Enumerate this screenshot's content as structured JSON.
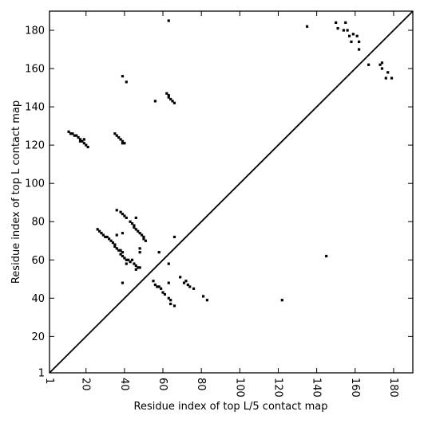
{
  "chart_data": {
    "type": "scatter",
    "xlabel": "Residue index of top L/5 contact map",
    "ylabel": "Residue index of top L contact map",
    "xlim": [
      1,
      190
    ],
    "ylim": [
      1,
      190
    ],
    "x_ticks": [
      1,
      20,
      40,
      60,
      80,
      100,
      120,
      140,
      160,
      180
    ],
    "y_ticks": [
      1,
      20,
      40,
      60,
      80,
      100,
      120,
      140,
      160,
      180
    ],
    "diagonal": true,
    "grid": false,
    "marker": "square",
    "series": [
      {
        "color": "#000000",
        "points": [
          [
            11,
            127
          ],
          [
            12,
            126
          ],
          [
            13,
            126
          ],
          [
            14,
            125
          ],
          [
            15,
            125
          ],
          [
            16,
            124
          ],
          [
            17,
            123
          ],
          [
            18,
            122
          ],
          [
            19,
            121
          ],
          [
            20,
            120
          ],
          [
            21,
            119
          ],
          [
            17,
            122
          ],
          [
            19,
            123
          ],
          [
            35,
            126
          ],
          [
            36,
            125
          ],
          [
            37,
            124
          ],
          [
            38,
            123
          ],
          [
            39,
            122
          ],
          [
            40,
            121
          ],
          [
            39,
            121
          ],
          [
            39,
            156
          ],
          [
            41,
            153
          ],
          [
            56,
            143
          ],
          [
            62,
            147
          ],
          [
            63,
            146
          ],
          [
            63,
            145
          ],
          [
            64,
            144
          ],
          [
            65,
            143
          ],
          [
            66,
            142
          ],
          [
            63,
            185
          ],
          [
            26,
            76
          ],
          [
            27,
            75
          ],
          [
            28,
            74
          ],
          [
            29,
            73
          ],
          [
            30,
            72
          ],
          [
            31,
            72
          ],
          [
            32,
            71
          ],
          [
            33,
            70
          ],
          [
            34,
            69
          ],
          [
            35,
            68
          ],
          [
            35,
            67
          ],
          [
            36,
            66
          ],
          [
            37,
            65
          ],
          [
            38,
            65
          ],
          [
            39,
            64
          ],
          [
            38,
            63
          ],
          [
            39,
            62
          ],
          [
            40,
            61
          ],
          [
            41,
            60
          ],
          [
            42,
            60
          ],
          [
            43,
            59
          ],
          [
            44,
            60
          ],
          [
            45,
            58
          ],
          [
            46,
            57
          ],
          [
            47,
            56
          ],
          [
            46,
            55
          ],
          [
            48,
            56
          ],
          [
            36,
            86
          ],
          [
            38,
            85
          ],
          [
            39,
            84
          ],
          [
            40,
            83
          ],
          [
            41,
            82
          ],
          [
            43,
            80
          ],
          [
            44,
            79
          ],
          [
            45,
            78
          ],
          [
            45,
            77
          ],
          [
            46,
            76
          ],
          [
            47,
            75
          ],
          [
            48,
            74
          ],
          [
            49,
            73
          ],
          [
            50,
            72
          ],
          [
            50,
            71
          ],
          [
            51,
            70
          ],
          [
            46,
            82
          ],
          [
            39,
            74
          ],
          [
            36,
            73
          ],
          [
            48,
            66
          ],
          [
            48,
            64
          ],
          [
            66,
            72
          ],
          [
            58,
            64
          ],
          [
            63,
            58
          ],
          [
            39,
            48
          ],
          [
            41,
            58
          ],
          [
            55,
            49
          ],
          [
            56,
            47
          ],
          [
            57,
            46
          ],
          [
            58,
            46
          ],
          [
            59,
            45
          ],
          [
            60,
            43
          ],
          [
            61,
            42
          ],
          [
            63,
            40
          ],
          [
            64,
            39
          ],
          [
            64,
            37
          ],
          [
            66,
            36
          ],
          [
            69,
            51
          ],
          [
            71,
            48
          ],
          [
            72,
            49
          ],
          [
            73,
            47
          ],
          [
            74,
            46
          ],
          [
            76,
            45
          ],
          [
            63,
            48
          ],
          [
            81,
            41
          ],
          [
            83,
            39
          ],
          [
            122,
            39
          ],
          [
            145,
            62
          ],
          [
            135,
            182
          ],
          [
            150,
            184
          ],
          [
            151,
            181
          ],
          [
            155,
            184
          ],
          [
            154,
            180
          ],
          [
            156,
            180
          ],
          [
            157,
            177
          ],
          [
            159,
            178
          ],
          [
            158,
            174
          ],
          [
            161,
            177
          ],
          [
            162,
            174
          ],
          [
            162,
            170
          ],
          [
            167,
            162
          ],
          [
            173,
            162
          ],
          [
            174,
            163
          ],
          [
            174,
            160
          ],
          [
            177,
            158
          ],
          [
            176,
            155
          ],
          [
            179,
            155
          ]
        ]
      }
    ]
  }
}
